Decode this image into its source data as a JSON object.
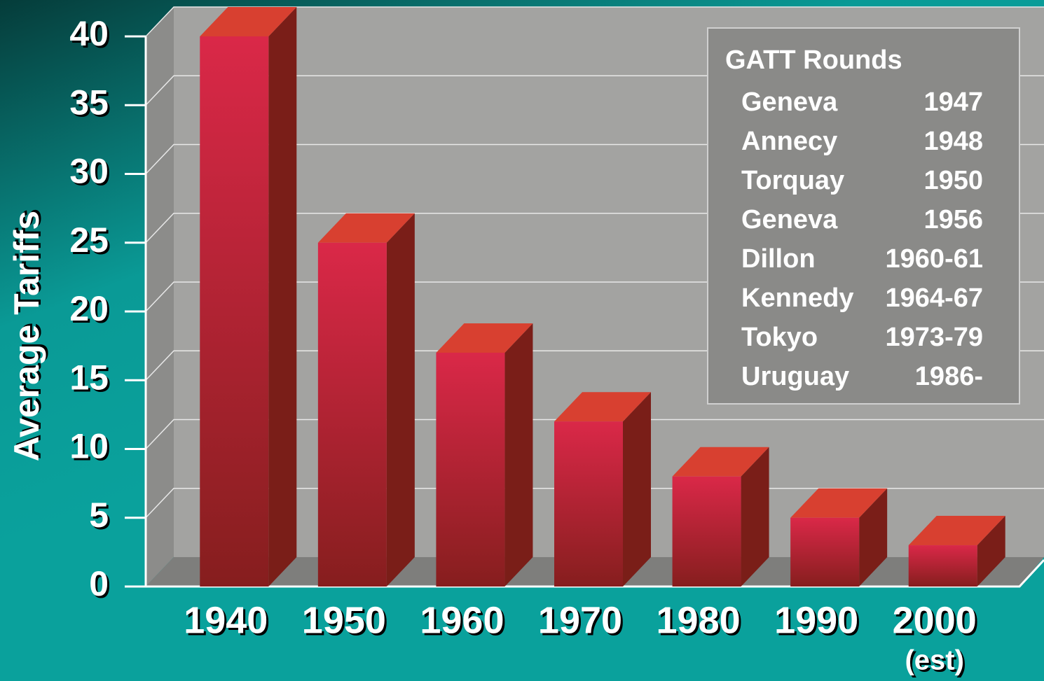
{
  "chart_data": {
    "type": "bar3d",
    "y_label": "Average Tariffs",
    "categories": [
      "1940",
      "1950",
      "1960",
      "1970",
      "1980",
      "1990",
      "2000"
    ],
    "annotation": "(est)",
    "values": [
      40,
      25,
      17,
      12,
      8,
      5,
      3
    ],
    "ylim": [
      0,
      40
    ],
    "yticks": [
      0,
      5,
      10,
      15,
      20,
      25,
      30,
      35,
      40
    ],
    "grid": true,
    "color": "#c8243c",
    "legend_box": {
      "title": "GATT Rounds",
      "rows": [
        [
          "Geneva",
          "1947"
        ],
        [
          "Annecy",
          "1948"
        ],
        [
          "Torquay",
          "1950"
        ],
        [
          "Geneva",
          "1956"
        ],
        [
          "Dillon",
          "1960-61"
        ],
        [
          "Kennedy",
          "1964-67"
        ],
        [
          "Tokyo",
          "1973-79"
        ],
        [
          "Uruguay",
          "1986-"
        ]
      ]
    }
  }
}
